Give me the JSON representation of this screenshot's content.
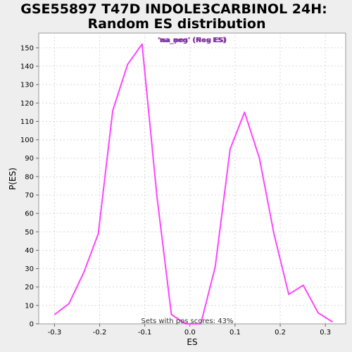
{
  "chart_data": {
    "type": "line",
    "title_line1": "GSE55897 T47D INDOLE3CARBINOL 24H:",
    "title_line2": "Random ES distribution",
    "xlabel": "ES",
    "ylabel": "P(ES)",
    "xlim": [
      -0.335,
      0.345
    ],
    "ylim": [
      0,
      158
    ],
    "xticks": [
      -0.3,
      -0.2,
      -0.1,
      0.0,
      0.1,
      0.2,
      0.3
    ],
    "xtick_labels": [
      "-0.3",
      "-0.2",
      "-0.1",
      "0.0",
      "0.1",
      "0.2",
      "0.3"
    ],
    "yticks": [
      0,
      10,
      20,
      30,
      40,
      50,
      60,
      70,
      80,
      90,
      100,
      110,
      120,
      130,
      140,
      150
    ],
    "grid": true,
    "legend": {
      "placement": "top-center",
      "overlapping_texts": [
        "'na_neg' (Neg ES)",
        "'na_pos' (Pos ES)"
      ]
    },
    "annotation": "Sets with pos scores: 43%",
    "series": [
      {
        "color": "#ff44ff",
        "x": [
          -0.3,
          -0.268,
          -0.235,
          -0.203,
          -0.171,
          -0.138,
          -0.106,
          -0.073,
          -0.041,
          -0.009,
          0.024,
          0.056,
          0.089,
          0.121,
          0.154,
          0.186,
          0.219,
          0.251,
          0.284,
          0.316
        ],
        "y": [
          5,
          11,
          28,
          49,
          116,
          141,
          152,
          69,
          5,
          0,
          0,
          31,
          95,
          115,
          90,
          49,
          16,
          21,
          6,
          1
        ]
      }
    ]
  }
}
